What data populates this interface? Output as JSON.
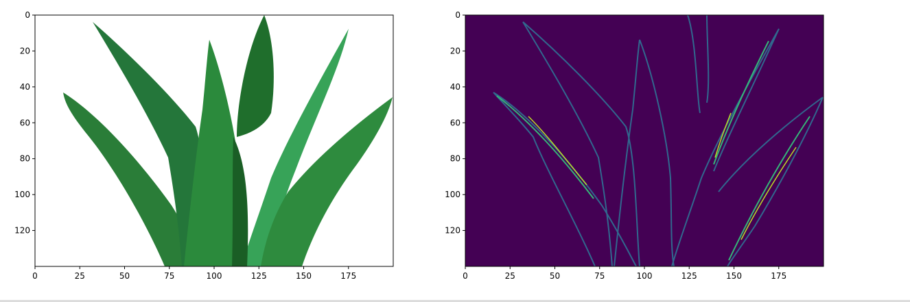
{
  "chart_data": [
    {
      "type": "image",
      "title": "",
      "xlabel": "",
      "ylabel": "",
      "xlim": [
        0,
        200
      ],
      "ylim": [
        140,
        0
      ],
      "x_ticks": [
        0,
        25,
        50,
        75,
        100,
        125,
        150,
        175
      ],
      "y_ticks": [
        0,
        20,
        40,
        60,
        80,
        100,
        120
      ],
      "content": "color photo of aloe vera plant",
      "background": "#ffffff",
      "leaf_colors": [
        "#1f6e2c",
        "#2e8b3e",
        "#3aa85a"
      ]
    },
    {
      "type": "image",
      "title": "",
      "xlabel": "",
      "ylabel": "",
      "xlim": [
        0,
        200
      ],
      "ylim": [
        140,
        0
      ],
      "x_ticks": [
        0,
        25,
        50,
        75,
        100,
        125,
        150,
        175
      ],
      "y_ticks": [
        0,
        20,
        40,
        60,
        80,
        100,
        120
      ],
      "content": "edge-detection map of the same plant (viridis colormap)",
      "colormap": "viridis",
      "background": "#440154",
      "edge_colors": [
        "#31688e",
        "#35b779",
        "#bddf26"
      ]
    }
  ]
}
